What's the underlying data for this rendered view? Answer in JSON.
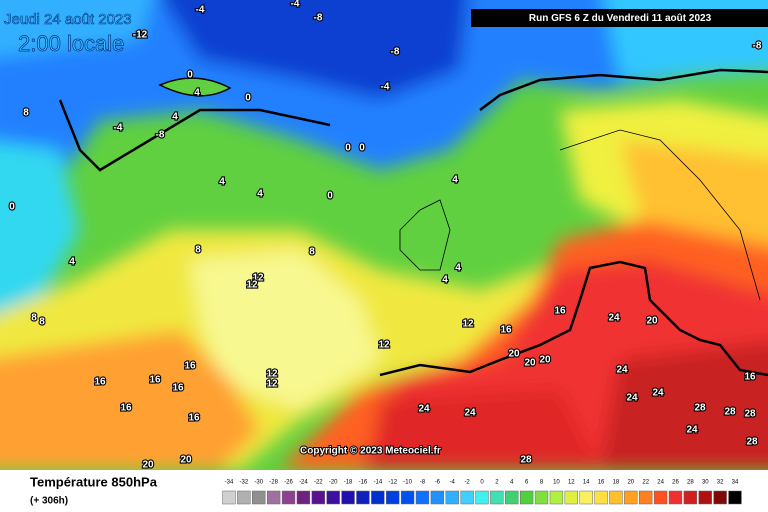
{
  "header": {
    "date": "Jeudi 24 août 2023",
    "time": "2:00 locale",
    "run": "Run GFS 6 Z du Vendredi 11 août 2023"
  },
  "copyright": "Copyright © 2023 Meteociel.fr",
  "footer": {
    "title": "Température 850hPa",
    "lead": "(+ 306h)"
  },
  "legend": {
    "values": [
      -34,
      -32,
      -30,
      -28,
      -26,
      -24,
      -22,
      -20,
      -18,
      -16,
      -14,
      -12,
      -10,
      -8,
      -6,
      -4,
      -2,
      0,
      2,
      4,
      6,
      8,
      10,
      12,
      14,
      16,
      18,
      20,
      22,
      24,
      26,
      28,
      30,
      32,
      34
    ],
    "colors": [
      "#d0d0d0",
      "#b0b0b0",
      "#909090",
      "#a070a0",
      "#904090",
      "#702080",
      "#5a1090",
      "#3c10a0",
      "#2010b0",
      "#1020c0",
      "#0030d0",
      "#0040e0",
      "#0050f0",
      "#1070ff",
      "#2090ff",
      "#30b0ff",
      "#40d0ff",
      "#40f0f0",
      "#40e0b0",
      "#40d070",
      "#50d040",
      "#80e040",
      "#b0f040",
      "#e0f040",
      "#f8f060",
      "#ffe040",
      "#ffc030",
      "#ffa020",
      "#ff8020",
      "#ff5020",
      "#f03030",
      "#d02020",
      "#b01010",
      "#800808",
      "#000000"
    ]
  },
  "map": {
    "labels": [
      "-4",
      "-4",
      "-8",
      "-8",
      "-4",
      "-12",
      "-8",
      "0",
      "4",
      "0",
      "4",
      "-4",
      "-8",
      "0",
      "0",
      "4",
      "4",
      "0",
      "4",
      "0",
      "8",
      "8",
      "4",
      "12",
      "12",
      "4",
      "4",
      "8",
      "12",
      "16",
      "16",
      "24",
      "20",
      "12",
      "20",
      "20",
      "20",
      "16",
      "16",
      "16",
      "16",
      "12",
      "12",
      "24",
      "16",
      "24",
      "24",
      "16",
      "24",
      "24",
      "28",
      "28",
      "28",
      "16",
      "24",
      "28",
      "20",
      "20",
      "28",
      "8",
      "8"
    ]
  }
}
